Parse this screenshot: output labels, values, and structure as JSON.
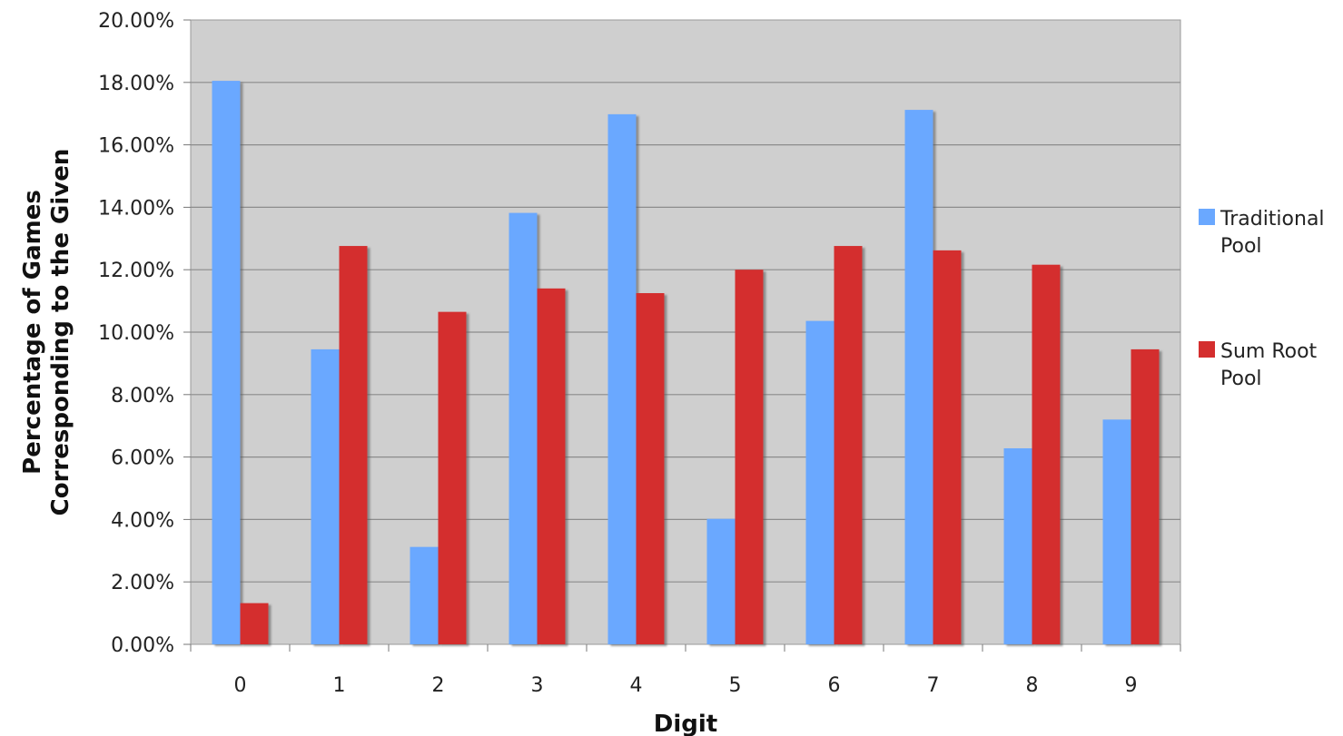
{
  "chart_data": {
    "type": "bar",
    "title": "",
    "xlabel": "Digit",
    "ylabel": [
      "Percentage of Games",
      "Corresponding to the Given"
    ],
    "categories": [
      "0",
      "1",
      "2",
      "3",
      "4",
      "5",
      "6",
      "7",
      "8",
      "9"
    ],
    "series": [
      {
        "name": [
          "Traditional",
          "Pool"
        ],
        "color": "#6aa8ff",
        "values": [
          18.05,
          9.45,
          3.12,
          13.82,
          16.98,
          4.02,
          10.36,
          17.12,
          6.28,
          7.2
        ]
      },
      {
        "name": [
          "Sum Root",
          "Pool"
        ],
        "color": "#d42e2e",
        "values": [
          1.32,
          12.76,
          10.65,
          11.4,
          11.25,
          12.0,
          12.76,
          12.62,
          12.16,
          9.45
        ]
      }
    ],
    "ylim": [
      0,
      20
    ],
    "yticks": [
      "0.00%",
      "2.00%",
      "4.00%",
      "6.00%",
      "8.00%",
      "10.00%",
      "12.00%",
      "14.00%",
      "16.00%",
      "18.00%",
      "20.00%"
    ],
    "grid": true,
    "legend_position": "right",
    "plot_background": "#cfcfcf",
    "grid_color": "#8c8c8c"
  }
}
